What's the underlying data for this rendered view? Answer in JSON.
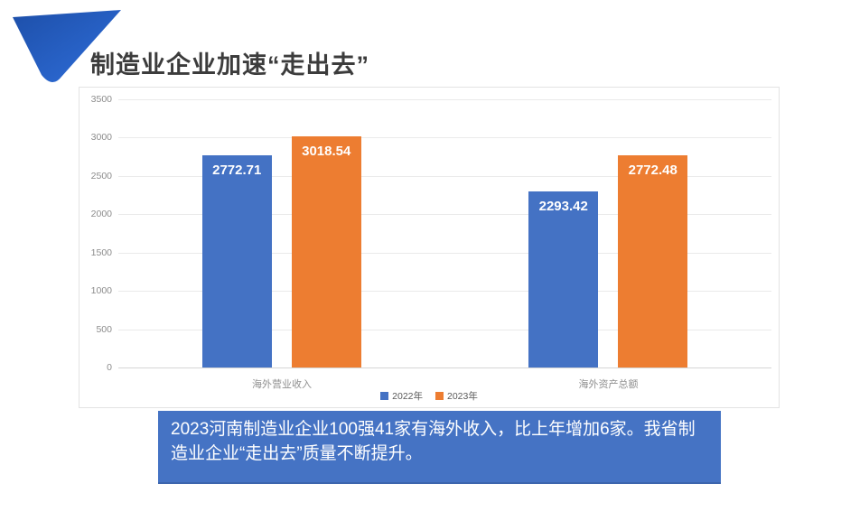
{
  "slide": {
    "title": "制造业企业加速“走出去”",
    "caption": "2023河南制造业企业100强41家有海外收入，比上年增加6家。我省制造业企业“走出去”质量不断提升。",
    "colors": {
      "title_text": "#3c3c3c",
      "caption_background": "#4573c4",
      "caption_text": "#ffffff",
      "ribbon_blue_dark": "#1d4fa9",
      "ribbon_blue_light": "#2f6eda",
      "panel_border": "#e3e3e3",
      "gridline": "#eaeaea",
      "axis_text": "#8c8c8c"
    }
  },
  "chart_data": {
    "type": "bar",
    "title": "",
    "xlabel": "",
    "ylabel": "",
    "categories": [
      "海外营业收入",
      "海外资产总额"
    ],
    "series": [
      {
        "name": "2022年",
        "color": "#4472c4",
        "values": [
          2772.71,
          2293.42
        ]
      },
      {
        "name": "2023年",
        "color": "#ed7d31",
        "values": [
          3018.54,
          2772.48
        ]
      }
    ],
    "value_labels": [
      "2772.71",
      "3018.54",
      "2293.42",
      "2772.48"
    ],
    "ylim": [
      0,
      3500
    ],
    "y_ticks": [
      0,
      500,
      1000,
      1500,
      2000,
      2500,
      3000,
      3500
    ],
    "grid": true,
    "legend_position": "bottom"
  }
}
